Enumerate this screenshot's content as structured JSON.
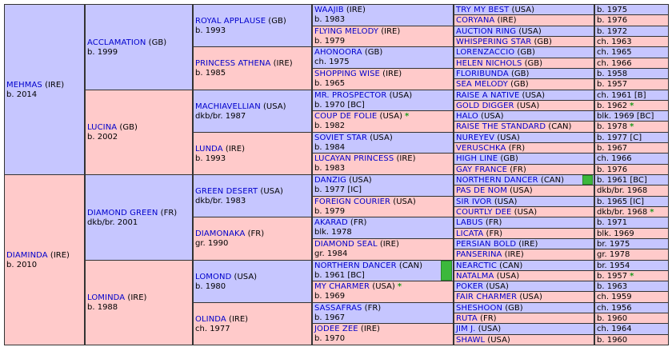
{
  "subject": {
    "sire": {
      "name": "MEHMAS",
      "country": "IRE",
      "info": "b. 2014",
      "sex": "male"
    },
    "dam": {
      "name": "DIAMINDA",
      "country": "IRE",
      "info": "b. 2010",
      "sex": "female"
    }
  },
  "gen2": [
    {
      "name": "ACCLAMATION",
      "country": "GB",
      "info": "b. 1999",
      "sex": "male"
    },
    {
      "name": "LUCINA",
      "country": "GB",
      "info": "b. 2002",
      "sex": "female"
    },
    {
      "name": "DIAMOND GREEN",
      "country": "FR",
      "info": "dkb/br. 2001",
      "sex": "male"
    },
    {
      "name": "LOMINDA",
      "country": "IRE",
      "info": "b. 1988",
      "sex": "female"
    }
  ],
  "gen3": [
    {
      "name": "ROYAL APPLAUSE",
      "country": "GB",
      "info": "b. 1993",
      "sex": "male"
    },
    {
      "name": "PRINCESS ATHENA",
      "country": "IRE",
      "info": "b. 1985",
      "sex": "female"
    },
    {
      "name": "MACHIAVELLIAN",
      "country": "USA",
      "info": "dkb/br. 1987",
      "sex": "male"
    },
    {
      "name": "LUNDA",
      "country": "IRE",
      "info": "b. 1993",
      "sex": "female"
    },
    {
      "name": "GREEN DESERT",
      "country": "USA",
      "info": "dkb/br. 1983",
      "sex": "male"
    },
    {
      "name": "DIAMONAKA",
      "country": "FR",
      "info": "gr. 1990",
      "sex": "female"
    },
    {
      "name": "LOMOND",
      "country": "USA",
      "info": "b. 1980",
      "sex": "male"
    },
    {
      "name": "OLINDA",
      "country": "IRE",
      "info": "ch. 1977",
      "sex": "female"
    }
  ],
  "gen4": [
    {
      "name": "WAAJIB",
      "country": "IRE",
      "info": "b. 1983",
      "sex": "male"
    },
    {
      "name": "FLYING MELODY",
      "country": "IRE",
      "info": "b. 1979",
      "sex": "female"
    },
    {
      "name": "AHONOORA",
      "country": "GB",
      "info": "ch. 1975",
      "sex": "male"
    },
    {
      "name": "SHOPPING WISE",
      "country": "IRE",
      "info": "b. 1965",
      "sex": "female"
    },
    {
      "name": "MR. PROSPECTOR",
      "country": "USA",
      "info": "b. 1970 [BC]",
      "sex": "male"
    },
    {
      "name": "COUP DE FOLIE",
      "country": "USA",
      "info": "b. 1982",
      "sex": "female",
      "star": "*"
    },
    {
      "name": "SOVIET STAR",
      "country": "USA",
      "info": "b. 1984",
      "sex": "male"
    },
    {
      "name": "LUCAYAN PRINCESS",
      "country": "IRE",
      "info": "b. 1983",
      "sex": "female"
    },
    {
      "name": "DANZIG",
      "country": "USA",
      "info": "b. 1977 [IC]",
      "sex": "male"
    },
    {
      "name": "FOREIGN COURIER",
      "country": "USA",
      "info": "b. 1979",
      "sex": "female"
    },
    {
      "name": "AKARAD",
      "country": "FR",
      "info": "blk. 1978",
      "sex": "male"
    },
    {
      "name": "DIAMOND SEAL",
      "country": "IRE",
      "info": "gr. 1984",
      "sex": "female"
    },
    {
      "name": "NORTHERN DANCER",
      "country": "CAN",
      "info": "b. 1961 [BC]",
      "sex": "male",
      "marker": true
    },
    {
      "name": "MY CHARMER",
      "country": "USA",
      "info": "b. 1969",
      "sex": "female",
      "star": "*"
    },
    {
      "name": "SASSAFRAS",
      "country": "FR",
      "info": "b. 1967",
      "sex": "male"
    },
    {
      "name": "JODEE ZEE",
      "country": "IRE",
      "info": "b. 1970",
      "sex": "female"
    }
  ],
  "gen5": [
    {
      "name": "TRY MY BEST",
      "country": "USA",
      "info": "b. 1975",
      "sex": "male"
    },
    {
      "name": "CORYANA",
      "country": "IRE",
      "info": "b. 1976",
      "sex": "female"
    },
    {
      "name": "AUCTION RING",
      "country": "USA",
      "info": "b. 1972",
      "sex": "male"
    },
    {
      "name": "WHISPERING STAR",
      "country": "GB",
      "info": "ch. 1963",
      "sex": "female"
    },
    {
      "name": "LORENZACCIO",
      "country": "GB",
      "info": "ch. 1965",
      "sex": "male"
    },
    {
      "name": "HELEN NICHOLS",
      "country": "GB",
      "info": "ch. 1966",
      "sex": "female"
    },
    {
      "name": "FLORIBUNDA",
      "country": "GB",
      "info": "b. 1958",
      "sex": "male"
    },
    {
      "name": "SEA MELODY",
      "country": "GB",
      "info": "b. 1957",
      "sex": "female"
    },
    {
      "name": "RAISE A NATIVE",
      "country": "USA",
      "info": "ch. 1961 [B]",
      "sex": "male"
    },
    {
      "name": "GOLD DIGGER",
      "country": "USA",
      "info": "b. 1962",
      "sex": "female",
      "star": "*"
    },
    {
      "name": "HALO",
      "country": "USA",
      "info": "blk. 1969 [BC]",
      "sex": "male"
    },
    {
      "name": "RAISE THE STANDARD",
      "country": "CAN",
      "info": "b. 1978",
      "sex": "female",
      "star": "*"
    },
    {
      "name": "NUREYEV",
      "country": "USA",
      "info": "b. 1977 [C]",
      "sex": "male"
    },
    {
      "name": "VERUSCHKA",
      "country": "FR",
      "info": "b. 1967",
      "sex": "female"
    },
    {
      "name": "HIGH LINE",
      "country": "GB",
      "info": "ch. 1966",
      "sex": "male"
    },
    {
      "name": "GAY FRANCE",
      "country": "FR",
      "info": "b. 1976",
      "sex": "female"
    },
    {
      "name": "NORTHERN DANCER",
      "country": "CAN",
      "info": "b. 1961 [BC]",
      "sex": "male",
      "marker": true
    },
    {
      "name": "PAS DE NOM",
      "country": "USA",
      "info": "dkb/br. 1968",
      "sex": "female"
    },
    {
      "name": "SIR IVOR",
      "country": "USA",
      "info": "b. 1965 [IC]",
      "sex": "male"
    },
    {
      "name": "COURTLY DEE",
      "country": "USA",
      "info": "dkb/br. 1968",
      "sex": "female",
      "star": "*"
    },
    {
      "name": "LABUS",
      "country": "FR",
      "info": "b. 1971",
      "sex": "male"
    },
    {
      "name": "LICATA",
      "country": "FR",
      "info": "blk. 1969",
      "sex": "female"
    },
    {
      "name": "PERSIAN BOLD",
      "country": "IRE",
      "info": "br. 1975",
      "sex": "male"
    },
    {
      "name": "PANSERINA",
      "country": "IRE",
      "info": "gr. 1978",
      "sex": "female"
    },
    {
      "name": "NEARCTIC",
      "country": "CAN",
      "info": "br. 1954",
      "sex": "male"
    },
    {
      "name": "NATALMA",
      "country": "USA",
      "info": "b. 1957",
      "sex": "female",
      "star": "*"
    },
    {
      "name": "POKER",
      "country": "USA",
      "info": "b. 1963",
      "sex": "male"
    },
    {
      "name": "FAIR CHARMER",
      "country": "USA",
      "info": "ch. 1959",
      "sex": "female"
    },
    {
      "name": "SHESHOON",
      "country": "GB",
      "info": "ch. 1956",
      "sex": "male"
    },
    {
      "name": "RUTA",
      "country": "FR",
      "info": "b. 1960",
      "sex": "female"
    },
    {
      "name": "JIM J.",
      "country": "USA",
      "info": "ch. 1964",
      "sex": "male"
    },
    {
      "name": "SHAWL",
      "country": "USA",
      "info": "b. 1960",
      "sex": "female"
    }
  ],
  "colors": {
    "male": "#c6c6ff",
    "female": "#ffcaca",
    "link": "#0000cc",
    "star": "#1a9a1a",
    "marker": "#3cb83c"
  }
}
